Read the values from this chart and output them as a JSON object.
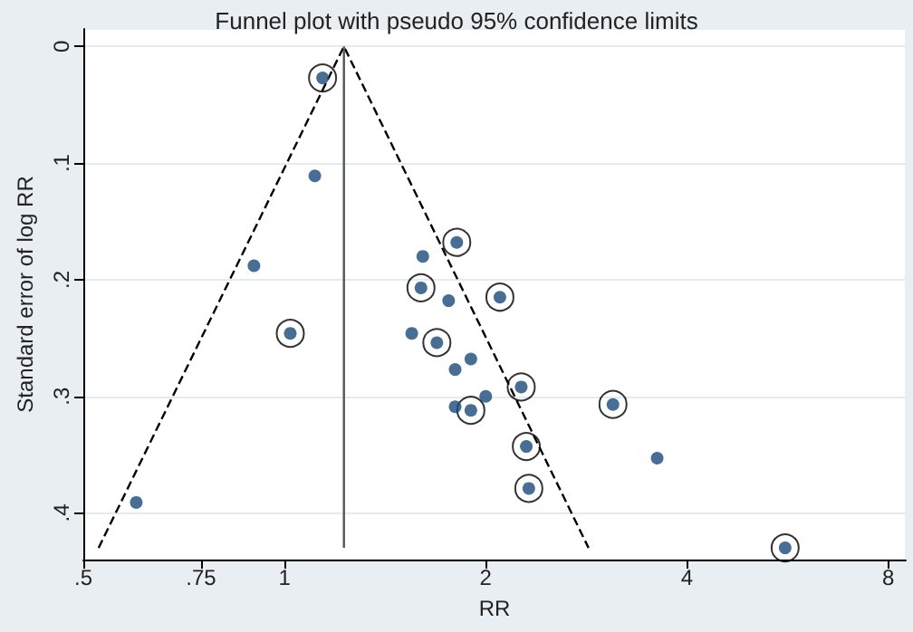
{
  "chart_data": {
    "type": "scatter",
    "title": "Funnel plot with pseudo 95% confidence limits",
    "xlabel": "RR",
    "ylabel": "Standard error of log RR",
    "log": "x",
    "grid": "y",
    "xlim": [
      0.5,
      8.5
    ],
    "xticks": [
      {
        "value": 0.5,
        "label": ".5"
      },
      {
        "value": 0.75,
        "label": ".75"
      },
      1,
      2,
      4,
      8
    ],
    "ylim": [
      0.44,
      -0.015
    ],
    "yticks": [
      0,
      {
        "value": 0.1,
        "label": ".1"
      },
      {
        "value": 0.2,
        "label": ".2"
      },
      {
        "value": 0.3,
        "label": ".3"
      },
      {
        "value": 0.4,
        "label": ".4"
      }
    ],
    "series": [
      {
        "marker": "circle",
        "color": "#1a4a7a",
        "x": [
          1.14,
          1.11,
          0.9,
          1.02,
          1.81,
          1.61,
          1.6,
          1.76,
          2.1,
          1.55,
          1.69,
          1.9,
          1.8,
          2.26,
          2.0,
          1.8,
          1.9,
          3.1,
          2.3,
          3.61,
          2.32,
          0.6,
          5.61
        ],
        "values": [
          0.027,
          0.111,
          0.188,
          0.246,
          0.168,
          0.18,
          0.207,
          0.218,
          0.215,
          0.246,
          0.254,
          0.268,
          0.277,
          0.292,
          0.3,
          0.309,
          0.312,
          0.307,
          0.343,
          0.353,
          0.379,
          0.391,
          0.43
        ]
      },
      {
        "type": "scatter",
        "marker": "circle",
        "color": "#000000",
        "x": [
          1.14,
          1.02,
          1.81,
          1.6,
          2.1,
          1.69,
          2.26,
          1.9,
          3.1,
          2.3,
          2.32,
          5.61
        ],
        "values": [
          0.027,
          0.246,
          0.168,
          0.207,
          0.215,
          0.254,
          0.292,
          0.312,
          0.307,
          0.343,
          0.379,
          0.43
        ]
      },
      {
        "type": "line",
        "marker": "none",
        "line_style": "dashed",
        "color": "#000000",
        "x": [
          0.527,
          1.227,
          2.85
        ],
        "values": [
          0.43,
          0,
          0.43
        ]
      },
      {
        "type": "line",
        "marker": "none",
        "line_style": "solid",
        "color": "#555555",
        "x": [
          1.227,
          1.227
        ],
        "values": [
          0,
          0.43
        ]
      }
    ]
  }
}
